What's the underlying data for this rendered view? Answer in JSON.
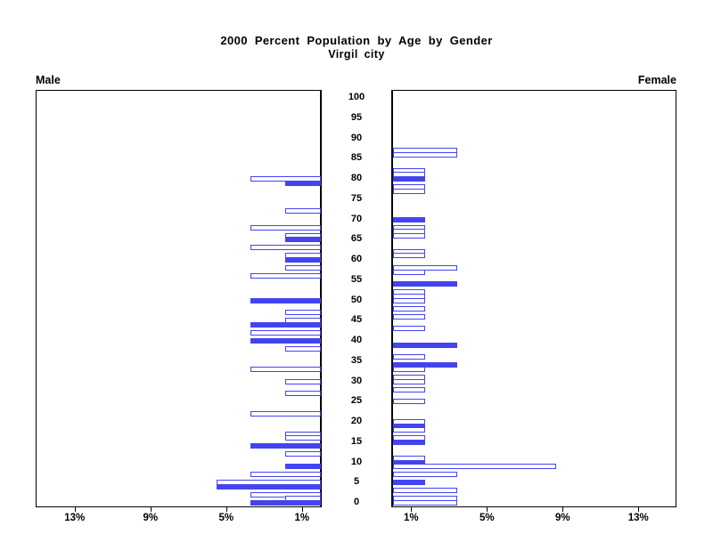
{
  "title": {
    "line1": "2000 Percent Population by Age by Gender",
    "line2": "Virgil city"
  },
  "panel_labels": {
    "left": "Male",
    "right": "Female"
  },
  "colors": {
    "bar_blue": "#4444EE",
    "axis_black": "#000000",
    "background": "#FFFFFF"
  },
  "chart_data": {
    "type": "bar",
    "subtype": "population-pyramid",
    "title": "2000 Percent Population by Age by Gender",
    "subtitle": "Virgil city",
    "legend": "none",
    "grid": false,
    "x_axis": {
      "unit": "percent of population",
      "ticks_pct": [
        1,
        5,
        9,
        13
      ],
      "tick_labels": [
        "1%",
        "5%",
        "9%",
        "13%"
      ],
      "max_pct": 15,
      "mirrored": true
    },
    "y_axis": {
      "unit": "age in years",
      "ticks": [
        0,
        5,
        10,
        15,
        20,
        25,
        30,
        35,
        40,
        45,
        50,
        55,
        60,
        65,
        70,
        75,
        80,
        85,
        90,
        95,
        100
      ],
      "min": 0,
      "max": 100
    },
    "series": [
      {
        "name": "Male",
        "side": "left",
        "bars": [
          {
            "age": 80,
            "pct": 3.7,
            "style": "outline"
          },
          {
            "age": 79,
            "pct": 1.9,
            "style": "filled"
          },
          {
            "age": 72,
            "pct": 1.9,
            "style": "outline"
          },
          {
            "age": 68,
            "pct": 3.7,
            "style": "outline"
          },
          {
            "age": 66,
            "pct": 1.9,
            "style": "outline"
          },
          {
            "age": 65,
            "pct": 1.9,
            "style": "filled"
          },
          {
            "age": 63,
            "pct": 3.7,
            "style": "outline"
          },
          {
            "age": 61,
            "pct": 1.9,
            "style": "outline"
          },
          {
            "age": 60,
            "pct": 1.9,
            "style": "filled"
          },
          {
            "age": 58,
            "pct": 1.9,
            "style": "outline"
          },
          {
            "age": 56,
            "pct": 3.7,
            "style": "outline"
          },
          {
            "age": 50,
            "pct": 3.7,
            "style": "filled"
          },
          {
            "age": 47,
            "pct": 1.9,
            "style": "outline"
          },
          {
            "age": 45,
            "pct": 1.9,
            "style": "outline"
          },
          {
            "age": 44,
            "pct": 3.7,
            "style": "filled"
          },
          {
            "age": 42,
            "pct": 3.7,
            "style": "outline"
          },
          {
            "age": 40,
            "pct": 3.7,
            "style": "filled"
          },
          {
            "age": 38,
            "pct": 1.9,
            "style": "outline"
          },
          {
            "age": 33,
            "pct": 3.7,
            "style": "outline"
          },
          {
            "age": 30,
            "pct": 1.9,
            "style": "outline"
          },
          {
            "age": 27,
            "pct": 1.9,
            "style": "outline"
          },
          {
            "age": 22,
            "pct": 3.7,
            "style": "outline"
          },
          {
            "age": 17,
            "pct": 1.9,
            "style": "outline"
          },
          {
            "age": 16,
            "pct": 1.9,
            "style": "outline"
          },
          {
            "age": 14,
            "pct": 3.7,
            "style": "filled"
          },
          {
            "age": 12,
            "pct": 1.9,
            "style": "outline"
          },
          {
            "age": 9,
            "pct": 1.9,
            "style": "filled"
          },
          {
            "age": 7,
            "pct": 3.7,
            "style": "outline"
          },
          {
            "age": 5,
            "pct": 5.5,
            "style": "outline"
          },
          {
            "age": 4,
            "pct": 5.5,
            "style": "filled"
          },
          {
            "age": 2,
            "pct": 3.7,
            "style": "outline"
          },
          {
            "age": 1,
            "pct": 1.9,
            "style": "outline"
          },
          {
            "age": 0,
            "pct": 3.7,
            "style": "filled"
          }
        ]
      },
      {
        "name": "Female",
        "side": "right",
        "bars": [
          {
            "age": 87,
            "pct": 3.4,
            "style": "outline"
          },
          {
            "age": 86,
            "pct": 3.4,
            "style": "outline"
          },
          {
            "age": 82,
            "pct": 1.7,
            "style": "outline"
          },
          {
            "age": 81,
            "pct": 1.7,
            "style": "outline"
          },
          {
            "age": 80,
            "pct": 1.7,
            "style": "filled"
          },
          {
            "age": 78,
            "pct": 1.7,
            "style": "outline"
          },
          {
            "age": 77,
            "pct": 1.7,
            "style": "outline"
          },
          {
            "age": 70,
            "pct": 1.7,
            "style": "filled"
          },
          {
            "age": 68,
            "pct": 1.7,
            "style": "outline"
          },
          {
            "age": 67,
            "pct": 1.7,
            "style": "outline"
          },
          {
            "age": 66,
            "pct": 1.7,
            "style": "outline"
          },
          {
            "age": 62,
            "pct": 1.7,
            "style": "outline"
          },
          {
            "age": 61,
            "pct": 1.7,
            "style": "outline"
          },
          {
            "age": 58,
            "pct": 3.4,
            "style": "outline"
          },
          {
            "age": 57,
            "pct": 1.7,
            "style": "outline"
          },
          {
            "age": 54,
            "pct": 3.4,
            "style": "filled"
          },
          {
            "age": 52,
            "pct": 1.7,
            "style": "outline"
          },
          {
            "age": 51,
            "pct": 1.7,
            "style": "outline"
          },
          {
            "age": 50,
            "pct": 1.7,
            "style": "outline"
          },
          {
            "age": 48,
            "pct": 1.7,
            "style": "outline"
          },
          {
            "age": 46,
            "pct": 1.7,
            "style": "outline"
          },
          {
            "age": 43,
            "pct": 1.7,
            "style": "outline"
          },
          {
            "age": 39,
            "pct": 3.4,
            "style": "filled"
          },
          {
            "age": 36,
            "pct": 1.7,
            "style": "outline"
          },
          {
            "age": 34,
            "pct": 3.4,
            "style": "filled"
          },
          {
            "age": 33,
            "pct": 1.7,
            "style": "outline"
          },
          {
            "age": 31,
            "pct": 1.7,
            "style": "outline"
          },
          {
            "age": 30,
            "pct": 1.7,
            "style": "outline"
          },
          {
            "age": 28,
            "pct": 1.7,
            "style": "outline"
          },
          {
            "age": 25,
            "pct": 1.7,
            "style": "outline"
          },
          {
            "age": 20,
            "pct": 1.7,
            "style": "outline"
          },
          {
            "age": 19,
            "pct": 1.7,
            "style": "filled"
          },
          {
            "age": 18,
            "pct": 1.7,
            "style": "outline"
          },
          {
            "age": 16,
            "pct": 1.7,
            "style": "outline"
          },
          {
            "age": 15,
            "pct": 1.7,
            "style": "filled"
          },
          {
            "age": 11,
            "pct": 1.7,
            "style": "outline"
          },
          {
            "age": 10,
            "pct": 1.7,
            "style": "filled"
          },
          {
            "age": 9,
            "pct": 8.6,
            "style": "outline"
          },
          {
            "age": 7,
            "pct": 3.4,
            "style": "outline"
          },
          {
            "age": 5,
            "pct": 1.7,
            "style": "filled"
          },
          {
            "age": 3,
            "pct": 3.4,
            "style": "outline"
          },
          {
            "age": 1,
            "pct": 3.4,
            "style": "outline"
          },
          {
            "age": 0,
            "pct": 3.4,
            "style": "outline"
          }
        ]
      }
    ]
  }
}
